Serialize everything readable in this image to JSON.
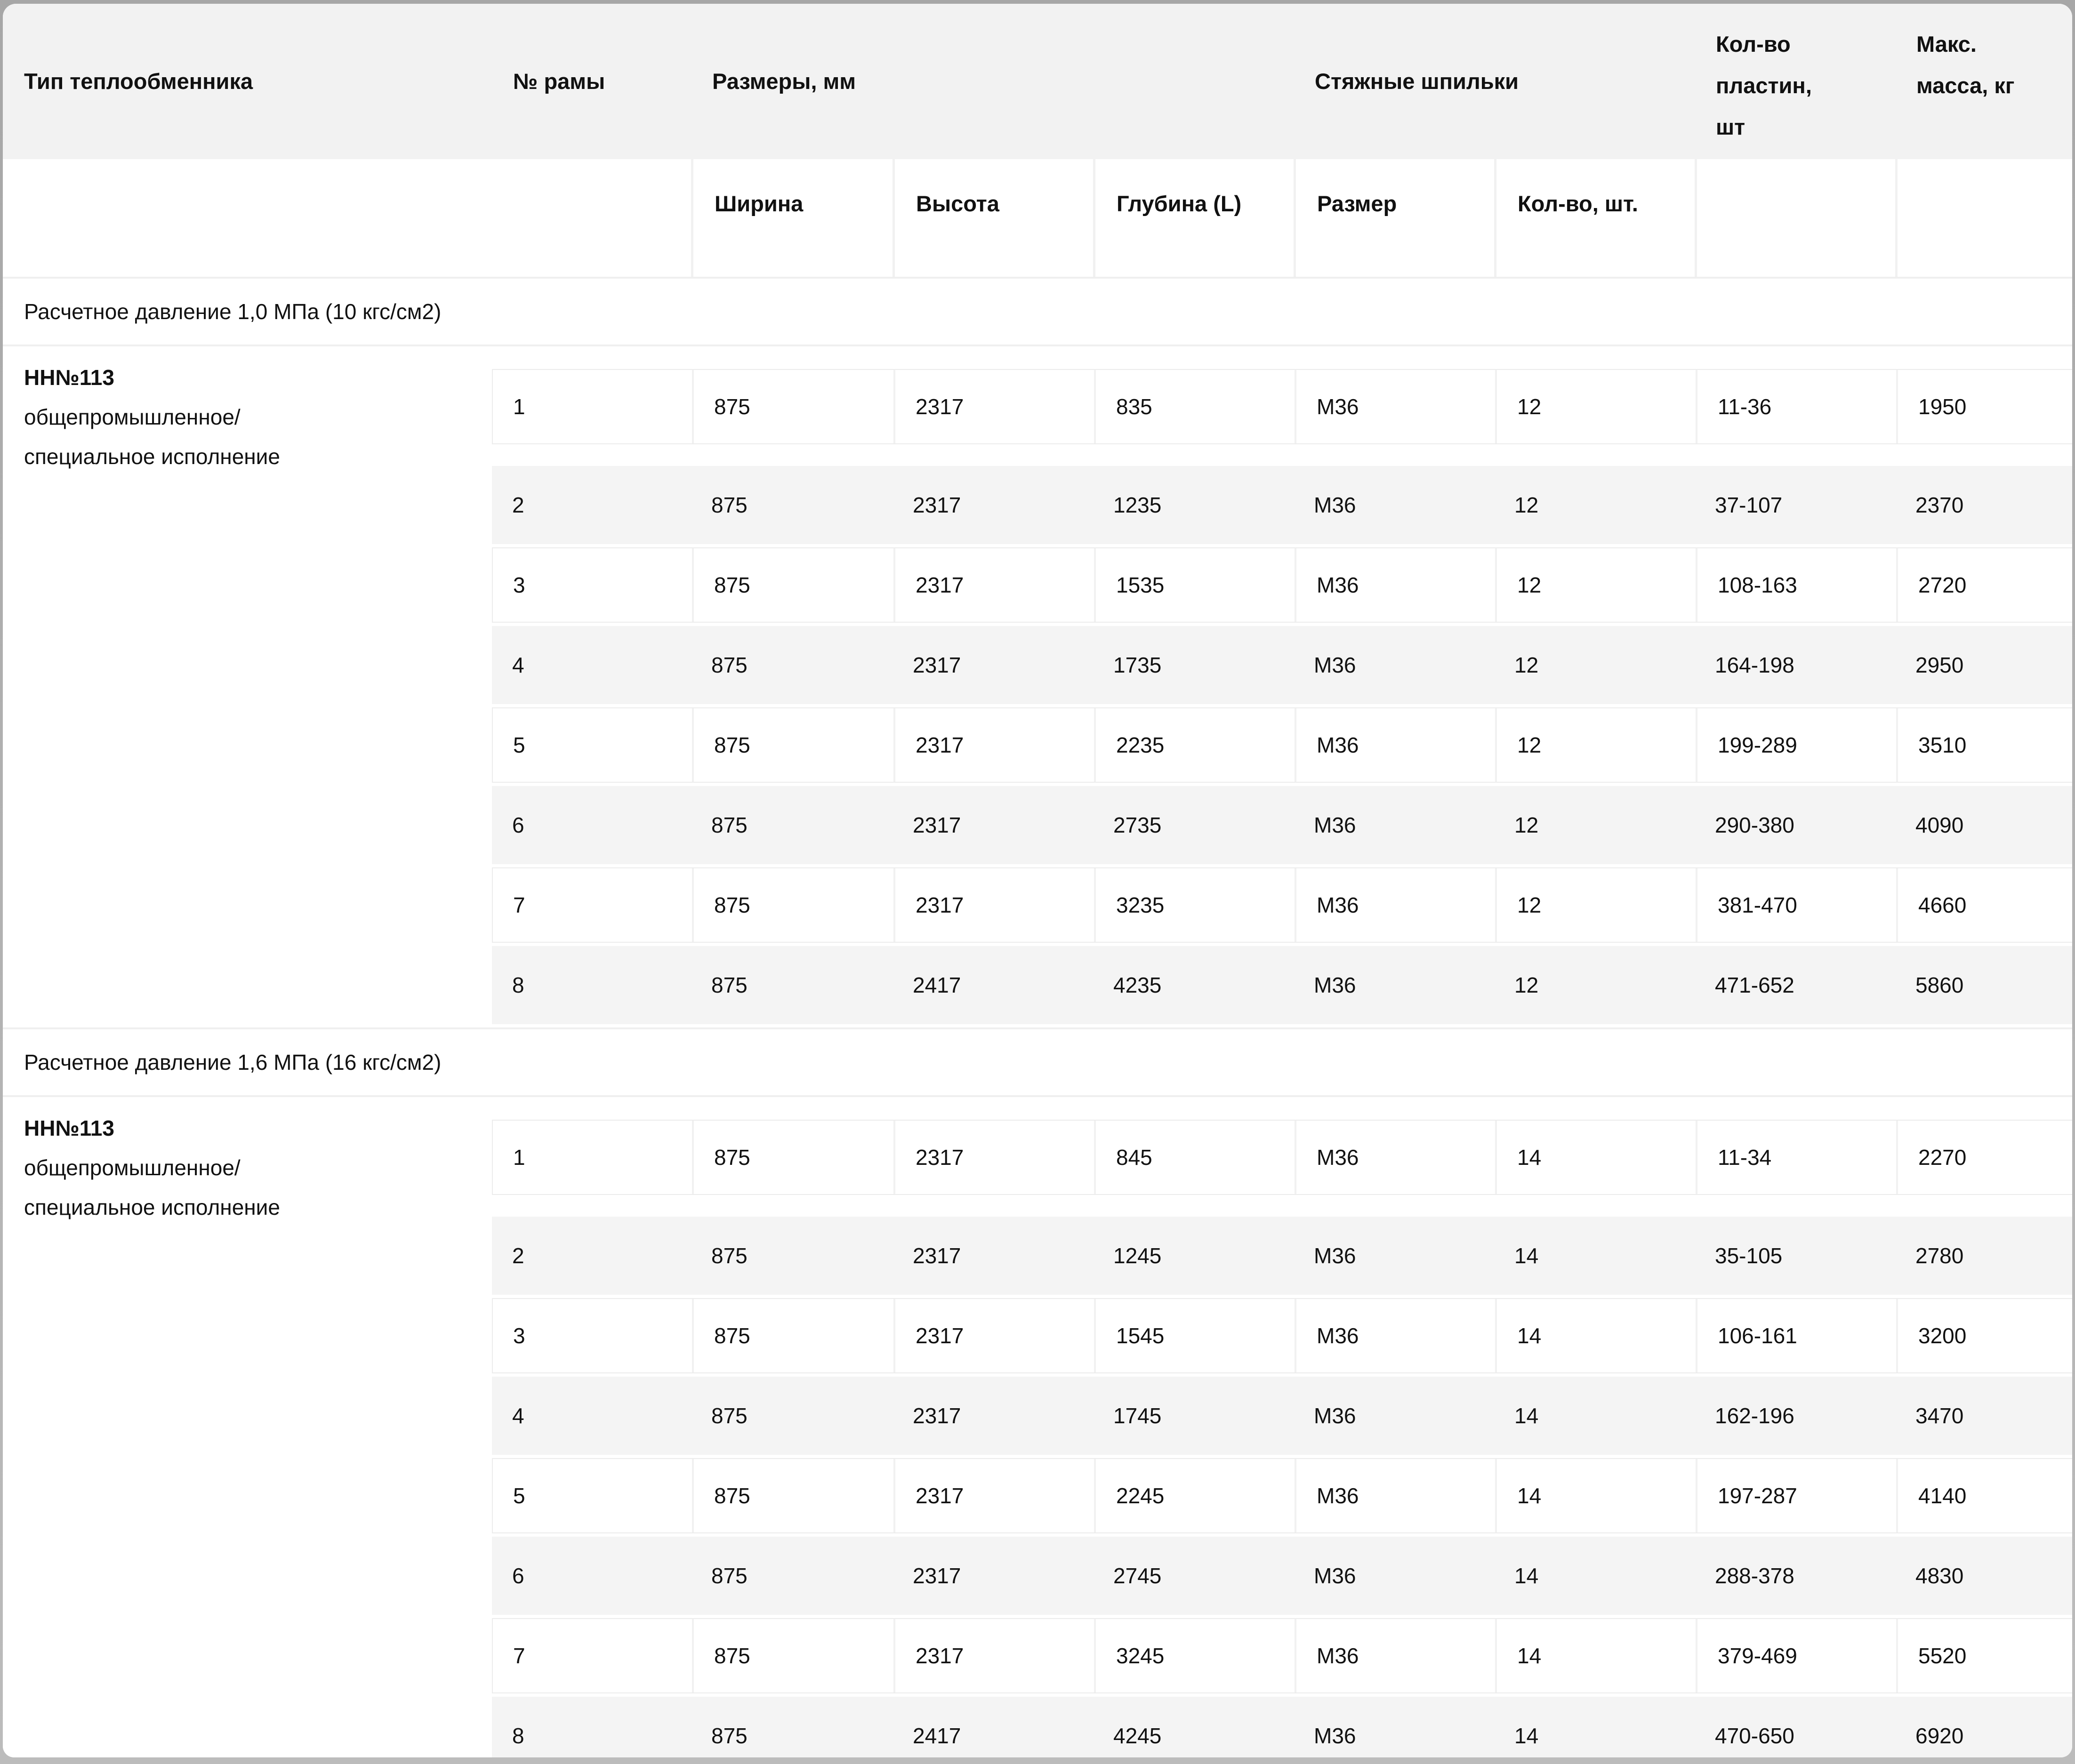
{
  "table": {
    "columns": {
      "type": "Тип теплообменника",
      "frame_no": "№ рамы",
      "dimensions": "Размеры, мм",
      "studs": "Стяжные шпильки",
      "plates_qty": [
        "Кол-во",
        "пластин,",
        "шт"
      ],
      "max_mass": [
        "Макс.",
        "масса, кг"
      ],
      "dim_width": "Ширина",
      "dim_height": "Высота",
      "dim_depth": [
        "Глубина",
        "(L)"
      ],
      "stud_size": "Размер",
      "stud_qty": [
        "Кол-во,",
        "шт."
      ]
    },
    "sections": [
      {
        "title": "Расчетное давление 1,0 МПа (10 кгс/см2)",
        "type_lines": [
          "НН№113",
          "общепромышленное/",
          "специальное исполнение"
        ],
        "rows": [
          {
            "frame_no": "1",
            "width_mm": "875",
            "height_mm": "2317",
            "depth_mm": "835",
            "stud_size": "М36",
            "stud_qty": "12",
            "plates": "11-36",
            "max_mass_kg": "1950"
          },
          {
            "frame_no": "2",
            "width_mm": "875",
            "height_mm": "2317",
            "depth_mm": "1235",
            "stud_size": "М36",
            "stud_qty": "12",
            "plates": "37-107",
            "max_mass_kg": "2370"
          },
          {
            "frame_no": "3",
            "width_mm": "875",
            "height_mm": "2317",
            "depth_mm": "1535",
            "stud_size": "М36",
            "stud_qty": "12",
            "plates": "108-163",
            "max_mass_kg": "2720"
          },
          {
            "frame_no": "4",
            "width_mm": "875",
            "height_mm": "2317",
            "depth_mm": "1735",
            "stud_size": "М36",
            "stud_qty": "12",
            "plates": "164-198",
            "max_mass_kg": "2950"
          },
          {
            "frame_no": "5",
            "width_mm": "875",
            "height_mm": "2317",
            "depth_mm": "2235",
            "stud_size": "М36",
            "stud_qty": "12",
            "plates": "199-289",
            "max_mass_kg": "3510"
          },
          {
            "frame_no": "6",
            "width_mm": "875",
            "height_mm": "2317",
            "depth_mm": "2735",
            "stud_size": "М36",
            "stud_qty": "12",
            "plates": "290-380",
            "max_mass_kg": "4090"
          },
          {
            "frame_no": "7",
            "width_mm": "875",
            "height_mm": "2317",
            "depth_mm": "3235",
            "stud_size": "М36",
            "stud_qty": "12",
            "plates": "381-470",
            "max_mass_kg": "4660"
          },
          {
            "frame_no": "8",
            "width_mm": "875",
            "height_mm": "2417",
            "depth_mm": "4235",
            "stud_size": "М36",
            "stud_qty": "12",
            "plates": "471-652",
            "max_mass_kg": "5860"
          }
        ]
      },
      {
        "title": "Расчетное давление 1,6 МПа (16 кгс/см2)",
        "type_lines": [
          "НН№113",
          "общепромышленное/",
          "специальное исполнение"
        ],
        "rows": [
          {
            "frame_no": "1",
            "width_mm": "875",
            "height_mm": "2317",
            "depth_mm": "845",
            "stud_size": "М36",
            "stud_qty": "14",
            "plates": "11-34",
            "max_mass_kg": "2270"
          },
          {
            "frame_no": "2",
            "width_mm": "875",
            "height_mm": "2317",
            "depth_mm": "1245",
            "stud_size": "М36",
            "stud_qty": "14",
            "plates": "35-105",
            "max_mass_kg": "2780"
          },
          {
            "frame_no": "3",
            "width_mm": "875",
            "height_mm": "2317",
            "depth_mm": "1545",
            "stud_size": "М36",
            "stud_qty": "14",
            "plates": "106-161",
            "max_mass_kg": "3200"
          },
          {
            "frame_no": "4",
            "width_mm": "875",
            "height_mm": "2317",
            "depth_mm": "1745",
            "stud_size": "М36",
            "stud_qty": "14",
            "plates": "162-196",
            "max_mass_kg": "3470"
          },
          {
            "frame_no": "5",
            "width_mm": "875",
            "height_mm": "2317",
            "depth_mm": "2245",
            "stud_size": "М36",
            "stud_qty": "14",
            "plates": "197-287",
            "max_mass_kg": "4140"
          },
          {
            "frame_no": "6",
            "width_mm": "875",
            "height_mm": "2317",
            "depth_mm": "2745",
            "stud_size": "М36",
            "stud_qty": "14",
            "plates": "288-378",
            "max_mass_kg": "4830"
          },
          {
            "frame_no": "7",
            "width_mm": "875",
            "height_mm": "2317",
            "depth_mm": "3245",
            "stud_size": "М36",
            "stud_qty": "14",
            "plates": "379-469",
            "max_mass_kg": "5520"
          },
          {
            "frame_no": "8",
            "width_mm": "875",
            "height_mm": "2417",
            "depth_mm": "4245",
            "stud_size": "М36",
            "stud_qty": "14",
            "plates": "470-650",
            "max_mass_kg": "6920"
          }
        ]
      }
    ]
  },
  "colors": {
    "header_bg": "#f2f2f2",
    "alt_row_bg": "#f4f4f4",
    "divider": "#efefef",
    "cell_separator": "#f1f1f1",
    "row_border": "#ececec",
    "text": "#111111",
    "frame_top": "#a7a7a7",
    "frame_bottom": "#bcbcbc"
  }
}
